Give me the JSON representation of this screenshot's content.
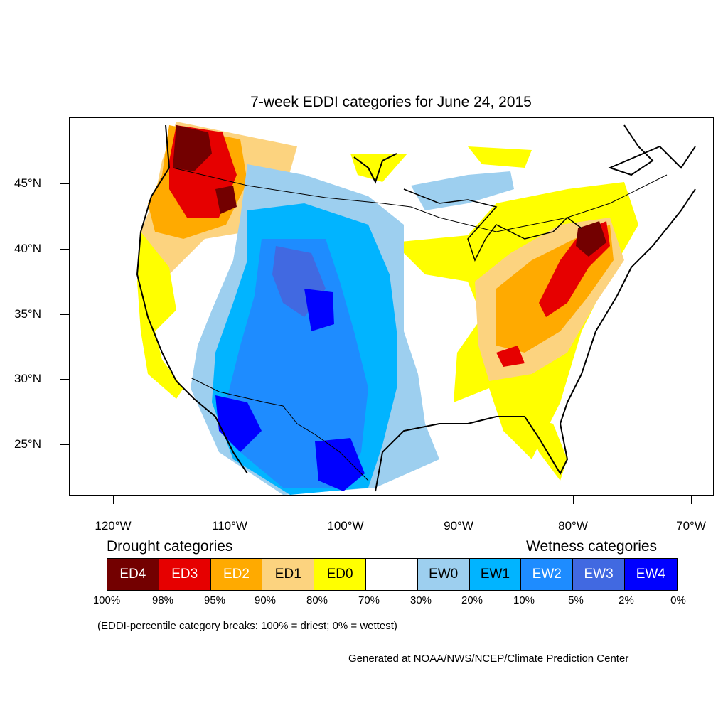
{
  "title": "7-week EDDI categories for June 24, 2015",
  "lat_labels": [
    "45°N",
    "40°N",
    "35°N",
    "30°N",
    "25°N"
  ],
  "lon_labels": [
    "120°W",
    "110°W",
    "100°W",
    "90°W",
    "80°W",
    "70°W"
  ],
  "legend": {
    "drought_heading": "Drought categories",
    "wetness_heading": "Wetness categories",
    "categories": [
      {
        "label": "ED4",
        "color": "#730000",
        "text_color": "#ffffff"
      },
      {
        "label": "ED3",
        "color": "#e60000",
        "text_color": "#ffffff"
      },
      {
        "label": "ED2",
        "color": "#ffaa00",
        "text_color": "#ffffff"
      },
      {
        "label": "ED1",
        "color": "#fcd37f",
        "text_color": "#000000"
      },
      {
        "label": "ED0",
        "color": "#ffff00",
        "text_color": "#000000"
      },
      {
        "label": "",
        "color": "#ffffff",
        "text_color": "#000000"
      },
      {
        "label": "EW0",
        "color": "#9dcfef",
        "text_color": "#000000"
      },
      {
        "label": "EW1",
        "color": "#01b4ff",
        "text_color": "#000000"
      },
      {
        "label": "EW2",
        "color": "#1e8cff",
        "text_color": "#ffffff"
      },
      {
        "label": "EW3",
        "color": "#4169e1",
        "text_color": "#ffffff"
      },
      {
        "label": "EW4",
        "color": "#0000ff",
        "text_color": "#ffffff"
      }
    ],
    "percentiles": [
      "100%",
      "98%",
      "95%",
      "90%",
      "80%",
      "70%",
      "30%",
      "20%",
      "10%",
      "5%",
      "2%",
      "0%"
    ]
  },
  "note": "(EDDI-percentile category breaks: 100% = driest; 0% = wettest)",
  "credit": "Generated at NOAA/NWS/NCEP/Climate Prediction Center"
}
